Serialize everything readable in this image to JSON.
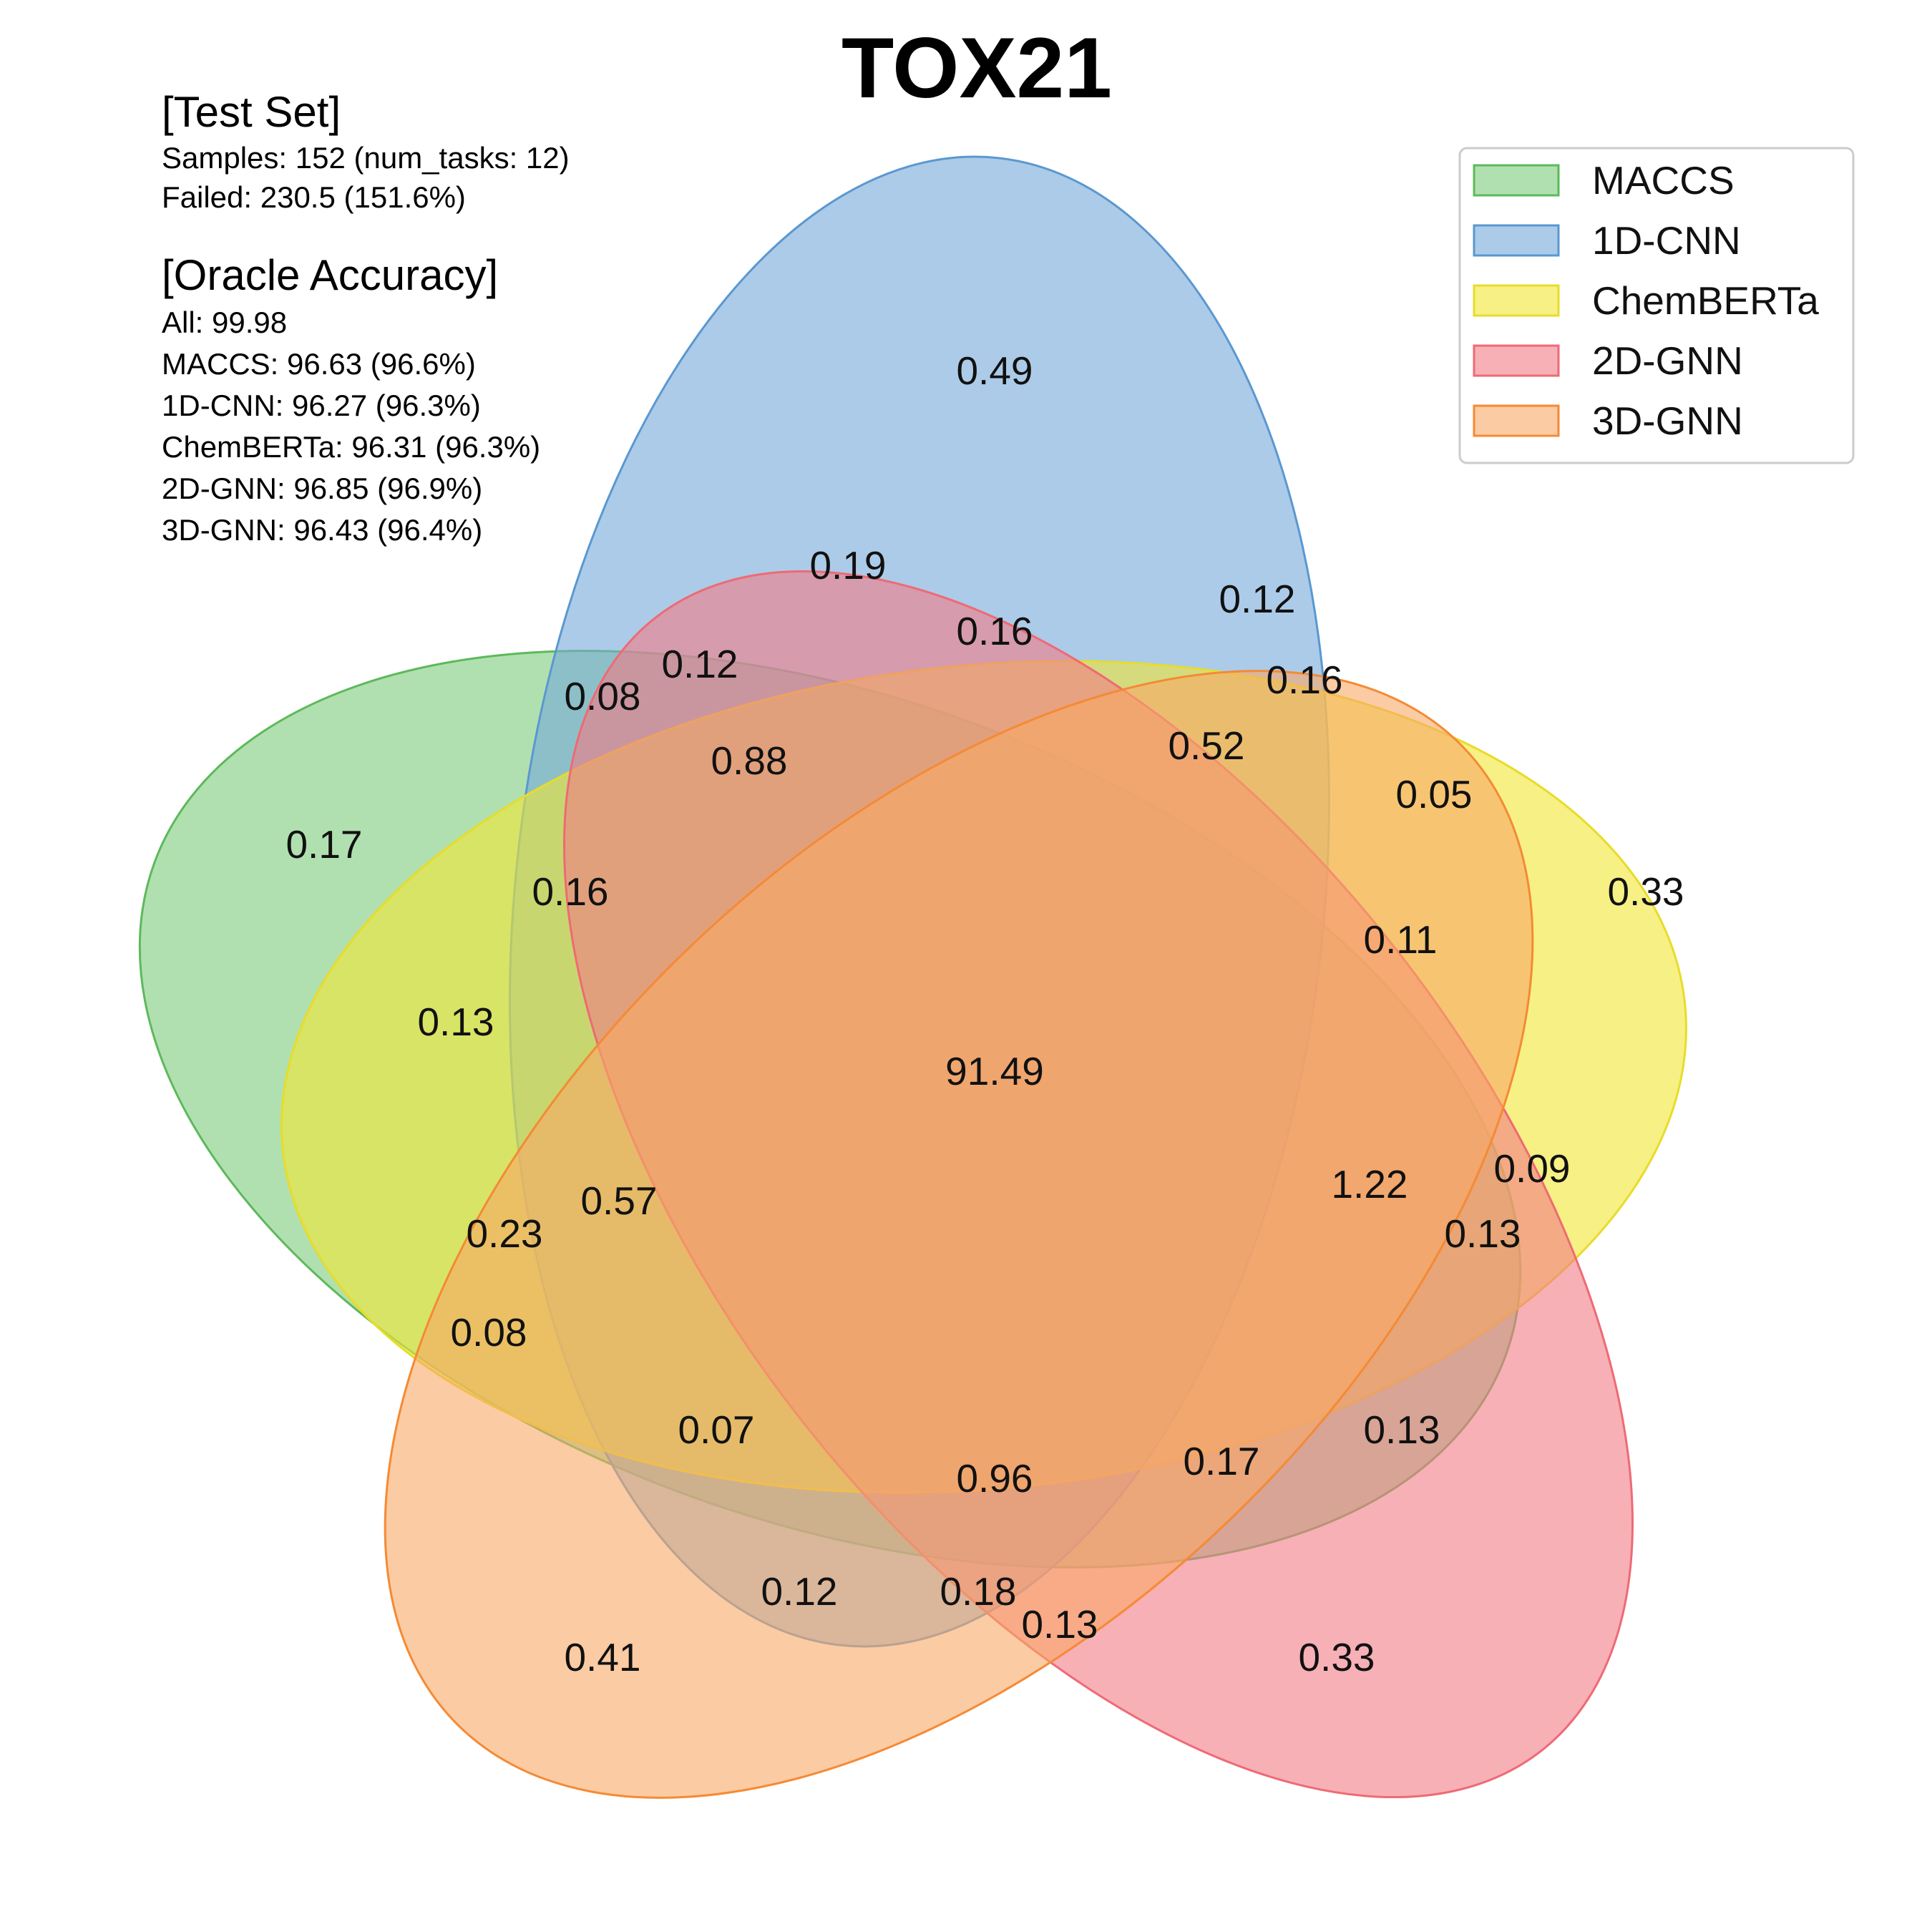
{
  "title": "TOX21",
  "test_set": {
    "heading": "[Test Set]",
    "lines": [
      "Samples: 152 (num_tasks: 12)",
      "Failed: 230.5 (151.6%)"
    ]
  },
  "oracle": {
    "heading": "[Oracle Accuracy]",
    "lines": [
      "All: 99.98",
      "MACCS: 96.63 (96.6%)",
      "1D-CNN: 96.27 (96.3%)",
      "ChemBERTa: 96.31 (96.3%)",
      "2D-GNN: 96.85 (96.9%)",
      "3D-GNN: 96.43 (96.4%)"
    ]
  },
  "sets": [
    {
      "name": "MACCS",
      "fill": "#7dcb7b",
      "stroke": "#5db95b"
    },
    {
      "name": "1D-CNN",
      "fill": "#74a9d8",
      "stroke": "#5a98d0"
    },
    {
      "name": "ChemBERTa",
      "fill": "#f0e634",
      "stroke": "#e8dc2a"
    },
    {
      "name": "2D-GNN",
      "fill": "#f17c85",
      "stroke": "#ee6a74"
    },
    {
      "name": "3D-GNN",
      "fill": "#f8a865",
      "stroke": "#f58a34"
    }
  ],
  "region_labels": [
    "0.49",
    "0.19",
    "0.12",
    "0.16",
    "0.12",
    "0.16",
    "0.08",
    "0.88",
    "0.52",
    "0.05",
    "0.17",
    "0.16",
    "0.33",
    "0.11",
    "0.13",
    "91.49",
    "0.09",
    "1.22",
    "0.57",
    "0.13",
    "0.23",
    "0.08",
    "0.13",
    "0.07",
    "0.17",
    "0.96",
    "0.12",
    "0.18",
    "0.13",
    "0.41",
    "0.33"
  ]
}
